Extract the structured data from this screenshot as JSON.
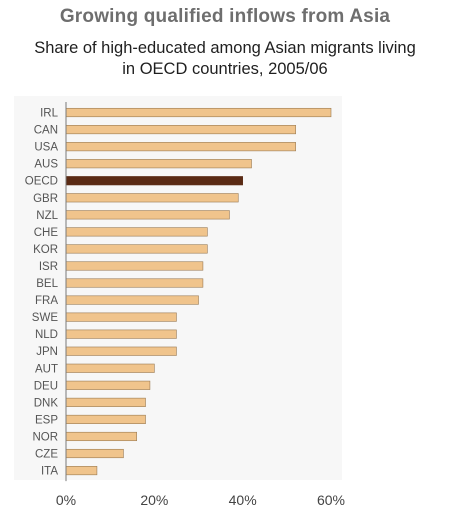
{
  "header": {
    "title": "Growing qualified inflows from Asia",
    "subtitle_line1": "Share of high-educated among Asian migrants living",
    "subtitle_line2": "in OECD countries, 2005/06"
  },
  "colors": {
    "bar": "#f0c48c",
    "bar_stroke": "#9a7a52",
    "highlight": "#5a2a14",
    "plot_bg": "#f7f7f7",
    "axis": "#7a7a7a"
  },
  "chart_data": {
    "type": "bar",
    "orientation": "horizontal",
    "title": "Growing qualified inflows from Asia",
    "subtitle": "Share of high-educated among Asian migrants living in OECD countries, 2005/06",
    "categories": [
      "IRL",
      "CAN",
      "USA",
      "AUS",
      "OECD",
      "GBR",
      "NZL",
      "CHE",
      "KOR",
      "ISR",
      "BEL",
      "FRA",
      "SWE",
      "NLD",
      "JPN",
      "AUT",
      "DEU",
      "DNK",
      "ESP",
      "NOR",
      "CZE",
      "ITA"
    ],
    "values": [
      60,
      52,
      52,
      42,
      40,
      39,
      37,
      32,
      32,
      31,
      31,
      30,
      25,
      25,
      25,
      20,
      19,
      18,
      18,
      16,
      13,
      7
    ],
    "highlight_category": "OECD",
    "xlim": [
      0,
      60
    ],
    "xticks": [
      0,
      20,
      40,
      60
    ],
    "xtick_labels": [
      "0%",
      "20%",
      "40%",
      "60%"
    ],
    "xlabel": "",
    "ylabel": "",
    "grid": false,
    "legend": "none"
  }
}
